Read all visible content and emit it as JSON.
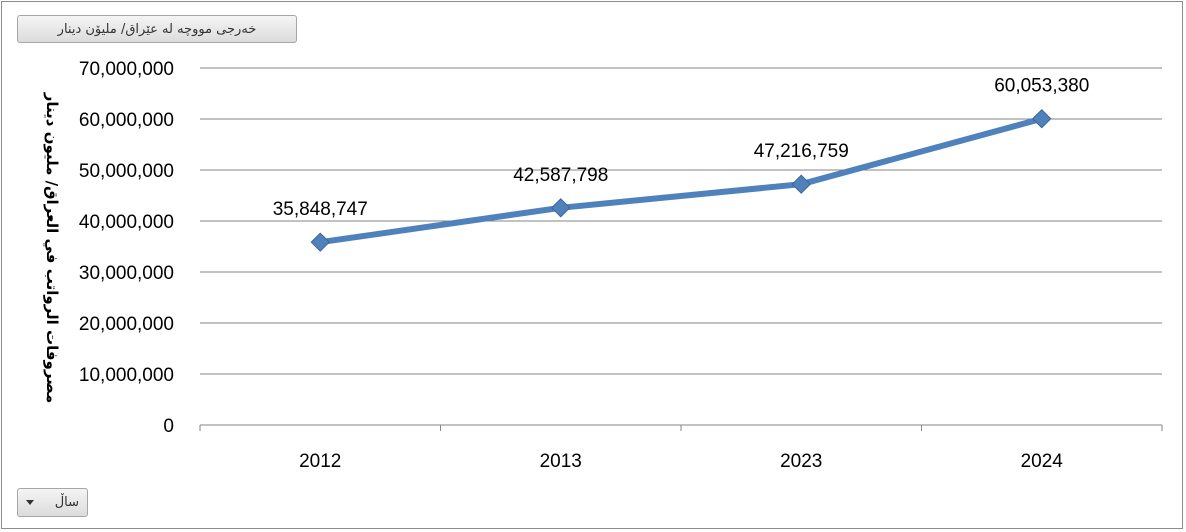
{
  "series_field_label": "خەرجی مووچە لە عێراق/ ملیۆن دینار",
  "axis_field_label": "ساڵ",
  "icons": {
    "axis_dropdown": "chevron-down-icon"
  },
  "chart_data": {
    "type": "line",
    "categories": [
      "2012",
      "2013",
      "2023",
      "2024"
    ],
    "series": [
      {
        "values": [
          35848747,
          42587798,
          47216759,
          60053380
        ],
        "color": "#4f81bd"
      }
    ],
    "data_labels": [
      "35,848,747",
      "42,587,798",
      "47,216,759",
      "60,053,380"
    ],
    "ylabel": "مصروفات الرواتب في العراق/ مليون دينار",
    "xlabel": "",
    "ylim": [
      0,
      70000000
    ],
    "yticks": [
      0,
      10000000,
      20000000,
      30000000,
      40000000,
      50000000,
      60000000,
      70000000
    ],
    "ytick_labels": [
      "0",
      "10,000,000",
      "20,000,000",
      "30,000,000",
      "40,000,000",
      "50,000,000",
      "60,000,000",
      "70,000,000"
    ],
    "grid": true,
    "legend": "none",
    "marker": "diamond"
  }
}
